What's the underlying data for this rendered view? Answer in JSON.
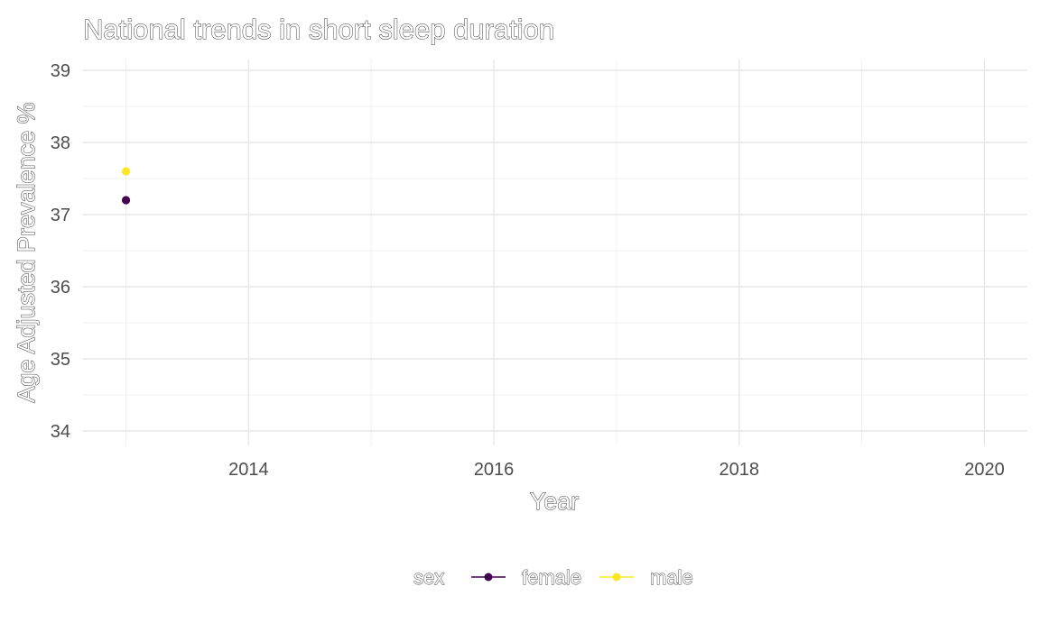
{
  "chart_data": {
    "type": "scatter",
    "title": "National trends in short sleep duration",
    "xlabel": "Year",
    "ylabel": "Age Adjusted Prevalence %",
    "xlim": [
      2012.65,
      2020.35
    ],
    "ylim": [
      33.8,
      39.15
    ],
    "x_ticks": [
      2014,
      2016,
      2018,
      2020
    ],
    "y_ticks": [
      34,
      35,
      36,
      37,
      38,
      39
    ],
    "grid": true,
    "legend": {
      "title": "sex",
      "position": "bottom",
      "entries": [
        {
          "name": "female",
          "color": "#440154"
        },
        {
          "name": "male",
          "color": "#FDE725"
        }
      ]
    },
    "series": [
      {
        "name": "female",
        "color": "#440154",
        "points": [
          {
            "x": 2013,
            "y": 37.2
          }
        ]
      },
      {
        "name": "male",
        "color": "#FDE725",
        "points": [
          {
            "x": 2013,
            "y": 37.6
          }
        ]
      }
    ]
  }
}
